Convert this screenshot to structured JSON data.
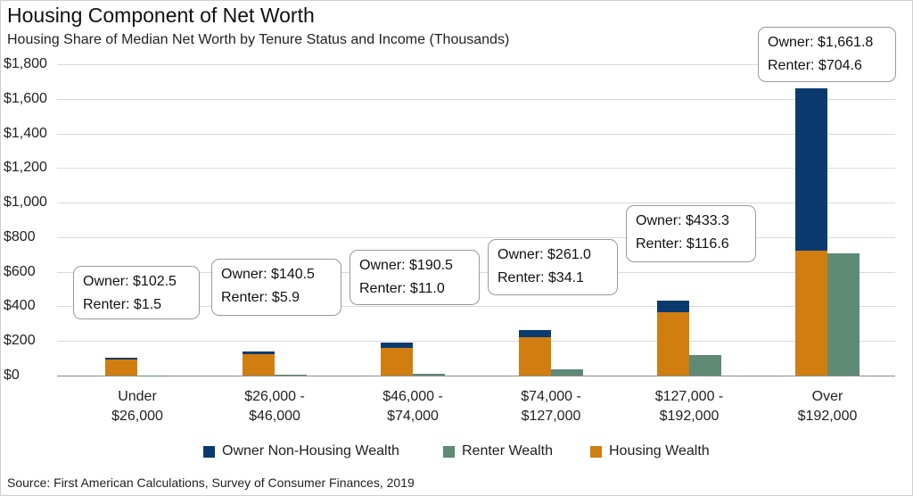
{
  "title": "Housing Component of Net Worth",
  "subtitle": "Housing Share of Median Net Worth by Tenure Status and Income (Thousands)",
  "source": "Source: First American Calculations, Survey of Consumer Finances, 2019",
  "colors": {
    "owner_non_housing": "#0b3b6e",
    "housing": "#d17e11",
    "renter": "#5e8a76",
    "grid": "#d9d9d9"
  },
  "legend": [
    {
      "label": "Owner Non-Housing Wealth",
      "color": "#0b3b6e"
    },
    {
      "label": "Renter Wealth",
      "color": "#5e8a76"
    },
    {
      "label": "Housing Wealth",
      "color": "#d17e11"
    }
  ],
  "yaxis_ticks": [
    "$0",
    "$200",
    "$400",
    "$600",
    "$800",
    "$1,000",
    "$1,200",
    "$1,400",
    "$1,600",
    "$1,800"
  ],
  "callouts": [
    {
      "owner": "Owner: $102.5",
      "renter": "Renter: $1.5"
    },
    {
      "owner": "Owner: $140.5",
      "renter": "Renter: $5.9"
    },
    {
      "owner": "Owner: $190.5",
      "renter": "Renter: $11.0"
    },
    {
      "owner": "Owner: $261.0",
      "renter": "Renter: $34.1"
    },
    {
      "owner": "Owner: $433.3",
      "renter": "Renter: $116.6"
    },
    {
      "owner": "Owner: $1,661.8",
      "renter": "Renter: $704.6"
    }
  ],
  "chart_data": {
    "type": "bar",
    "stacked": true,
    "title": "Housing Component of Net Worth",
    "subtitle": "Housing Share of Median Net Worth by Tenure Status and Income (Thousands)",
    "categories": [
      [
        "Under",
        "$26,000"
      ],
      [
        "$26,000 -",
        "$46,000"
      ],
      [
        "$46,000 -",
        "$74,000"
      ],
      [
        "$74,000 -",
        "$127,000"
      ],
      [
        "$127,000 -",
        "$192,000"
      ],
      [
        "Over",
        "$192,000"
      ]
    ],
    "series": [
      {
        "name": "Housing Wealth",
        "stack": "owner",
        "values": [
          92,
          125,
          160,
          220,
          365,
          720
        ]
      },
      {
        "name": "Owner Non-Housing Wealth",
        "stack": "owner",
        "values": [
          10.5,
          15.5,
          30.5,
          41.0,
          68.3,
          941.8
        ]
      },
      {
        "name": "Renter Wealth",
        "stack": "renter",
        "values": [
          1.5,
          5.9,
          11.0,
          34.1,
          116.6,
          704.6
        ]
      }
    ],
    "owner_totals": [
      102.5,
      140.5,
      190.5,
      261.0,
      433.3,
      1661.8
    ],
    "renter_totals": [
      1.5,
      5.9,
      11.0,
      34.1,
      116.6,
      704.6
    ],
    "ylim": [
      0,
      1800
    ],
    "ytick_step": 200,
    "grid": true,
    "legend_position": "bottom"
  }
}
